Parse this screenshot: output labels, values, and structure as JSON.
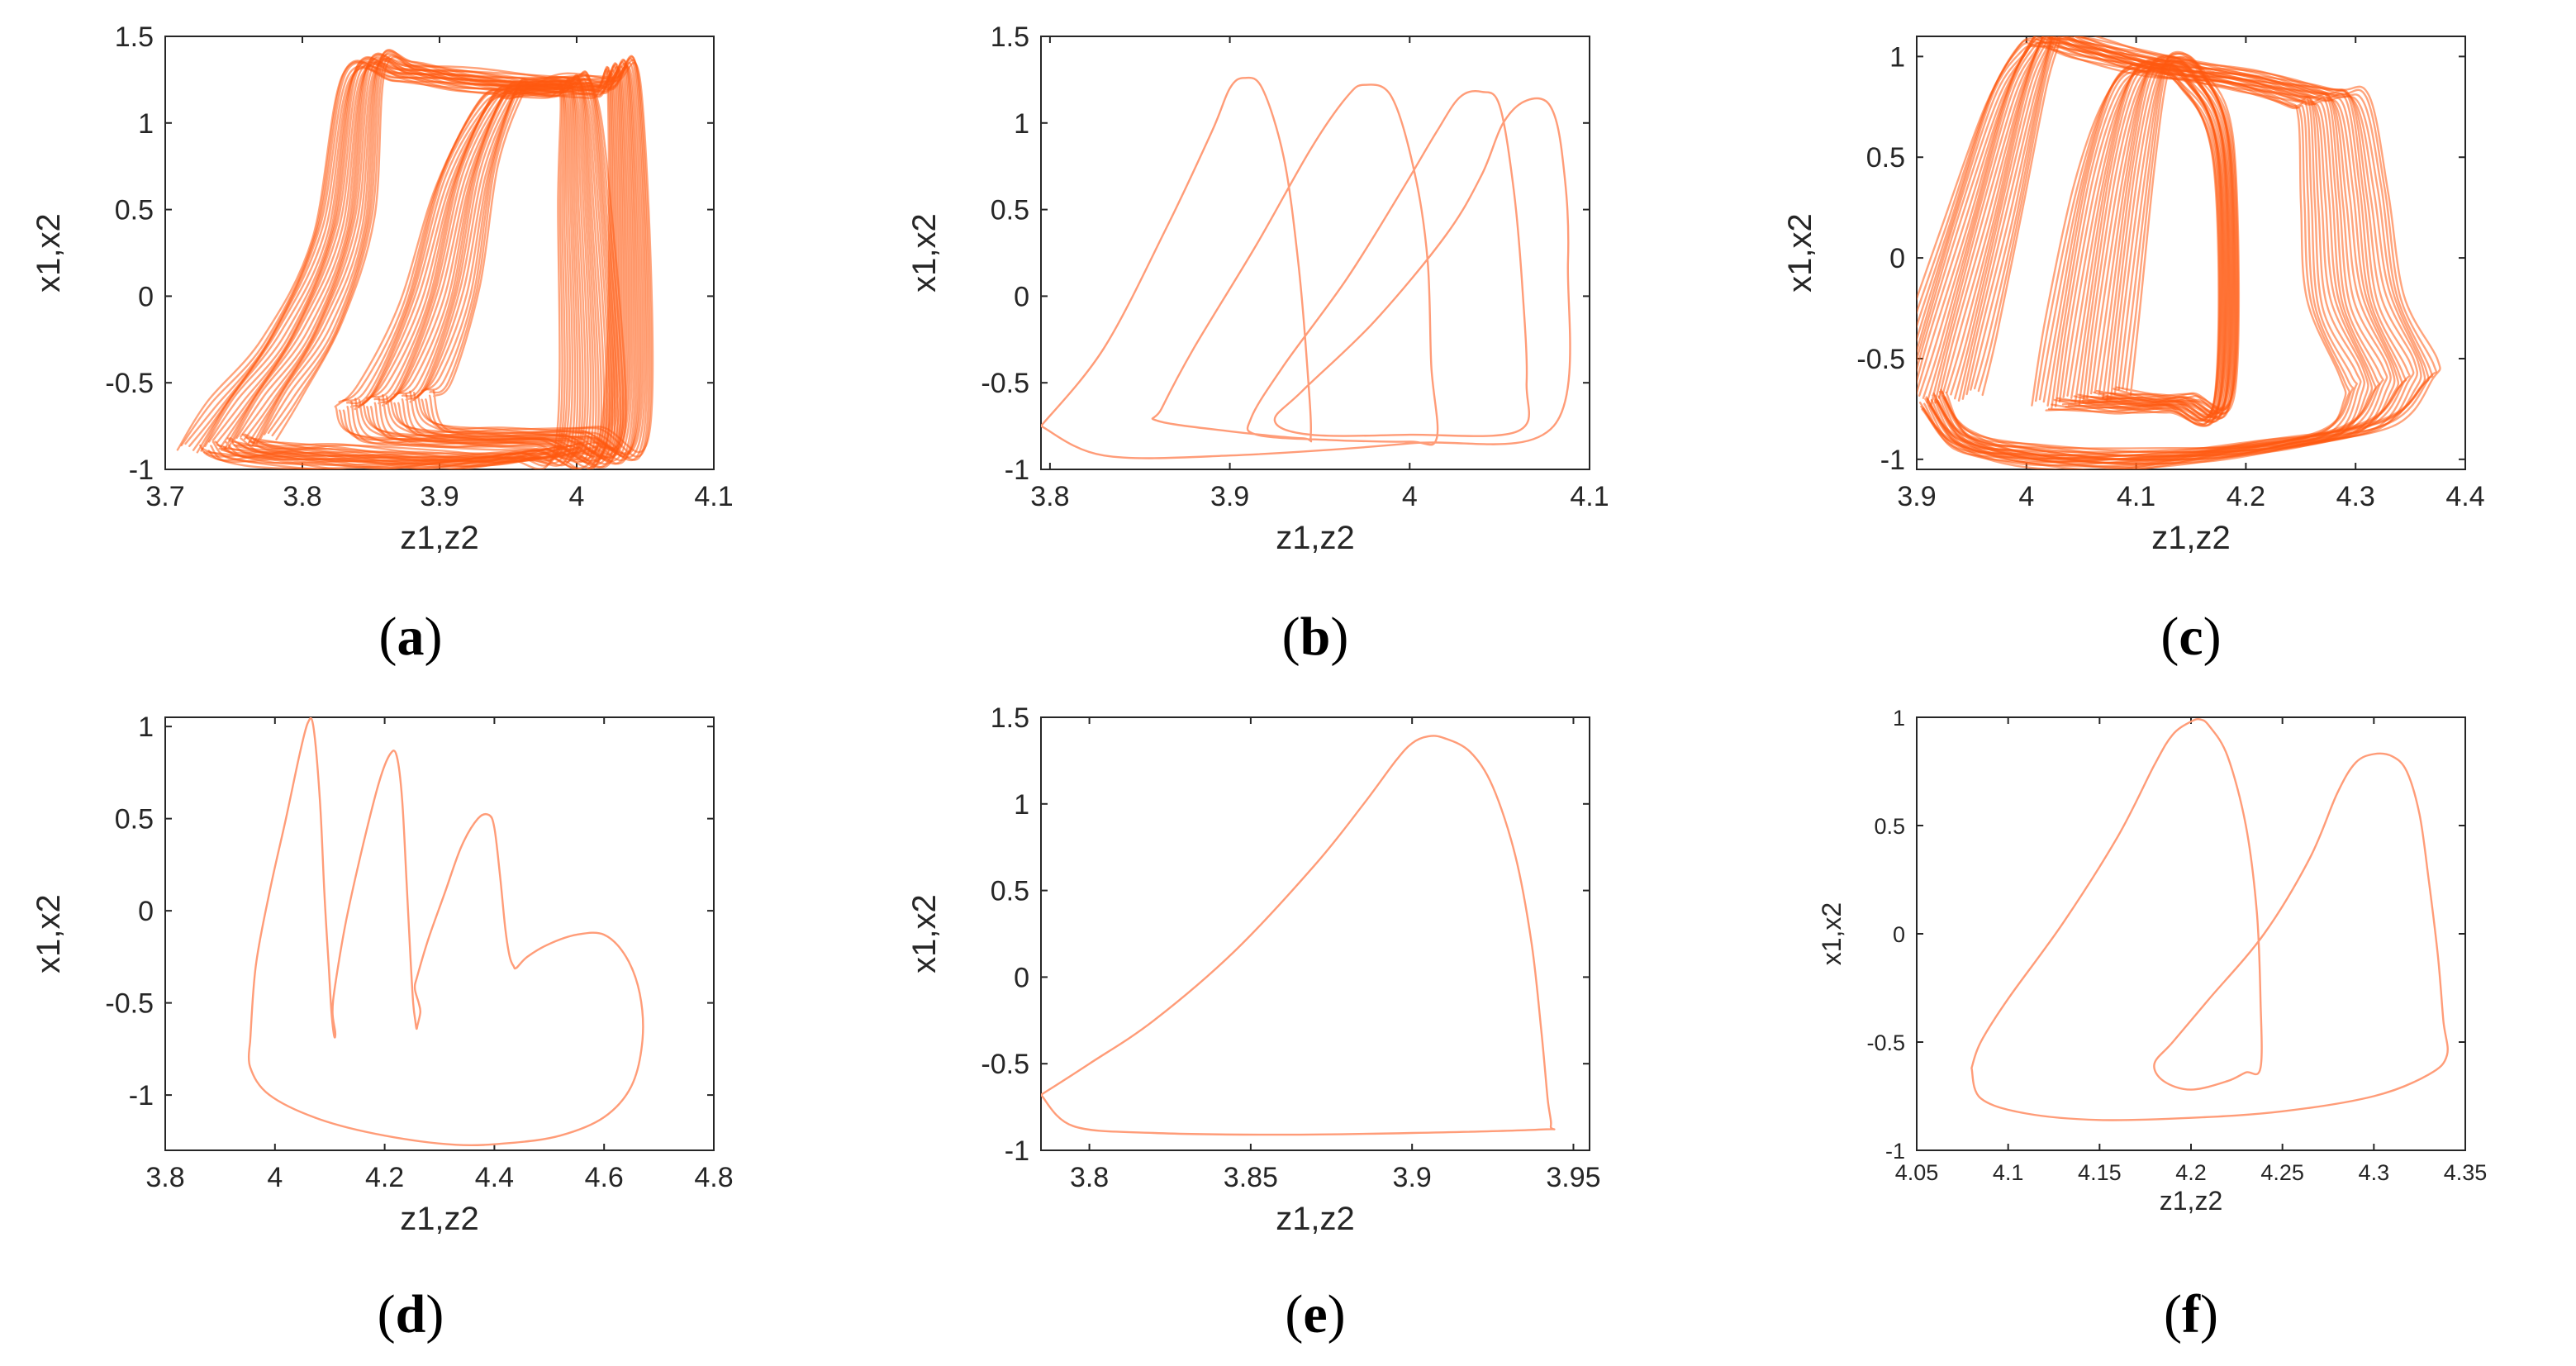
{
  "colors": {
    "trajectory": "#ff5a10",
    "trajectory_light": "#ff9c78",
    "axis": "#262626"
  },
  "chart_data": [
    {
      "panel": "a",
      "caption": {
        "open": "(",
        "letter": "a",
        "close": ")"
      },
      "type": "line",
      "kind": "phase-portrait-chaotic",
      "xlabel": "z1,z2",
      "ylabel": "x1,x2",
      "xlim": [
        3.7,
        4.1
      ],
      "ylim": [
        -1,
        1.5
      ],
      "xticks": [
        "3.7",
        "3.8",
        "3.9",
        "4",
        "4.1"
      ],
      "yticks": [
        "-1",
        "-0.5",
        "0",
        "0.5",
        "1",
        "1.5"
      ],
      "series": [
        {
          "x": [
            3.745,
            3.765,
            3.8,
            3.83,
            3.845,
            3.875,
            3.92,
            3.985,
            4.0,
            4.005,
            4.01,
            3.98,
            3.93,
            3.87,
            3.8,
            3.76,
            3.745
          ],
          "y": [
            -0.85,
            -0.6,
            -0.2,
            0.4,
            1.3,
            1.3,
            1.25,
            1.2,
            1.2,
            0.6,
            -0.8,
            -0.9,
            -0.95,
            -0.95,
            -0.92,
            -0.9,
            -0.85
          ]
        },
        {
          "x": [
            3.86,
            3.875,
            3.9,
            3.92,
            3.945,
            3.96,
            3.985,
            4.02,
            4.035,
            4.035,
            3.99,
            3.92,
            3.87,
            3.86
          ],
          "y": [
            -0.6,
            -0.5,
            0.0,
            0.7,
            1.15,
            1.2,
            1.22,
            1.2,
            1.18,
            -0.8,
            -0.82,
            -0.82,
            -0.78,
            -0.6
          ]
        }
      ]
    },
    {
      "panel": "b",
      "caption": {
        "open": "(",
        "letter": "b",
        "close": ")"
      },
      "type": "line",
      "kind": "phase-portrait-periodic",
      "xlabel": "z1,z2",
      "ylabel": "x1,x2",
      "xlim": [
        3.795,
        4.1
      ],
      "ylim": [
        -1,
        1.5
      ],
      "xticks": [
        "3.8",
        "3.9",
        "4",
        "4.1"
      ],
      "xtick_values": [
        3.8,
        3.9,
        4.0,
        4.1
      ],
      "yticks": [
        "-1",
        "-0.5",
        "0",
        "0.5",
        "1",
        "1.5"
      ],
      "series": [
        {
          "x": [
            3.795,
            3.83,
            3.865,
            3.89,
            3.9,
            3.908,
            3.918,
            3.93,
            3.938,
            3.943,
            3.945,
            3.94,
            3.9,
            3.86,
            3.862,
            3.88,
            3.915,
            3.945,
            3.965,
            3.975,
            3.99,
            4.003,
            4.01,
            4.012,
            4.015,
            4.0,
            3.955,
            3.915,
            3.912,
            3.93,
            3.965,
            3.995,
            4.015,
            4.028,
            4.04,
            4.05,
            4.058,
            4.063,
            4.065,
            4.06,
            4.0,
            3.945,
            3.925,
            3.94,
            3.98,
            4.02,
            4.04,
            4.052,
            4.065,
            4.078,
            4.085,
            4.088,
            4.08,
            4.0,
            3.9,
            3.83,
            3.795
          ],
          "y": [
            -0.75,
            -0.3,
            0.4,
            0.95,
            1.2,
            1.26,
            1.2,
            0.8,
            0.2,
            -0.4,
            -0.8,
            -0.82,
            -0.78,
            -0.72,
            -0.65,
            -0.3,
            0.3,
            0.85,
            1.15,
            1.22,
            1.15,
            0.7,
            0.2,
            -0.4,
            -0.82,
            -0.84,
            -0.83,
            -0.8,
            -0.7,
            -0.4,
            0.1,
            0.6,
            0.95,
            1.15,
            1.18,
            1.1,
            0.6,
            0.0,
            -0.5,
            -0.78,
            -0.8,
            -0.8,
            -0.72,
            -0.55,
            -0.15,
            0.35,
            0.7,
            1.0,
            1.13,
            1.1,
            0.8,
            0.2,
            -0.75,
            -0.85,
            -0.92,
            -0.92,
            -0.75
          ]
        }
      ]
    },
    {
      "panel": "c",
      "caption": {
        "open": "(",
        "letter": "c",
        "close": ")"
      },
      "type": "line",
      "kind": "phase-portrait-chaotic",
      "xlabel": "z1,z2",
      "ylabel": "x1,x2",
      "xlim": [
        3.9,
        4.4
      ],
      "ylim": [
        -1.05,
        1.1
      ],
      "xticks": [
        "3.9",
        "4",
        "4.1",
        "4.2",
        "4.3",
        "4.4"
      ],
      "yticks": [
        "-1",
        "-0.5",
        "0",
        "0.5",
        "1"
      ],
      "series": [
        {
          "x": [
            3.915,
            3.93,
            3.96,
            3.99,
            4.01,
            4.02,
            4.05,
            4.12,
            4.2,
            4.26,
            4.28,
            4.29,
            4.3,
            4.33,
            4.33,
            4.3,
            4.2,
            4.1,
            4.0,
            3.94,
            3.915
          ],
          "y": [
            -0.7,
            -0.4,
            0.2,
            0.8,
            1.05,
            1.1,
            1.05,
            0.95,
            0.88,
            0.8,
            0.75,
            0.3,
            -0.2,
            -0.55,
            -0.65,
            -0.85,
            -0.95,
            -1.0,
            -0.98,
            -0.9,
            -0.7
          ]
        },
        {
          "x": [
            4.05,
            4.06,
            4.08,
            4.1,
            4.12,
            4.15,
            4.18,
            4.18,
            4.14,
            4.1,
            4.05
          ],
          "y": [
            -0.7,
            -0.3,
            0.4,
            0.85,
            0.97,
            0.9,
            0.5,
            -0.7,
            -0.72,
            -0.72,
            -0.7
          ]
        }
      ]
    },
    {
      "panel": "d",
      "caption": {
        "open": "(",
        "letter": "d",
        "close": ")"
      },
      "type": "line",
      "kind": "phase-portrait-periodic",
      "xlabel": "z1,z2",
      "ylabel": "x1,x2",
      "xlim": [
        3.8,
        4.8
      ],
      "ylim": [
        -1.3,
        1.05
      ],
      "xticks": [
        "3.8",
        "4",
        "4.2",
        "4.4",
        "4.6",
        "4.8"
      ],
      "yticks": [
        "-1",
        "-0.5",
        "0",
        "0.5",
        "1"
      ],
      "series": [
        {
          "x": [
            3.955,
            3.965,
            3.99,
            4.02,
            4.045,
            4.06,
            4.07,
            4.082,
            4.09,
            4.098,
            4.103,
            4.108,
            4.11,
            4.105,
            4.11,
            4.13,
            4.16,
            4.19,
            4.21,
            4.222,
            4.232,
            4.24,
            4.247,
            4.252,
            4.256,
            4.258,
            4.26,
            4.265,
            4.262,
            4.255,
            4.26,
            4.28,
            4.31,
            4.34,
            4.37,
            4.39,
            4.4,
            4.41,
            4.42,
            4.428,
            4.435,
            4.44,
            4.46,
            4.5,
            4.55,
            4.6,
            4.64,
            4.665,
            4.67,
            4.65,
            4.6,
            4.52,
            4.43,
            4.33,
            4.2,
            4.08,
            3.99,
            3.955,
            3.955
          ],
          "y": [
            -0.7,
            -0.3,
            0.1,
            0.5,
            0.85,
            1.02,
            1.0,
            0.6,
            0.1,
            -0.3,
            -0.55,
            -0.68,
            -0.66,
            -0.55,
            -0.4,
            -0.05,
            0.35,
            0.7,
            0.85,
            0.84,
            0.6,
            0.15,
            -0.25,
            -0.5,
            -0.6,
            -0.64,
            -0.62,
            -0.55,
            -0.5,
            -0.42,
            -0.35,
            -0.15,
            0.1,
            0.35,
            0.5,
            0.52,
            0.45,
            0.2,
            -0.1,
            -0.25,
            -0.3,
            -0.31,
            -0.25,
            -0.18,
            -0.13,
            -0.13,
            -0.25,
            -0.45,
            -0.7,
            -0.95,
            -1.12,
            -1.22,
            -1.26,
            -1.27,
            -1.22,
            -1.13,
            -1.0,
            -0.85,
            -0.7
          ]
        }
      ]
    },
    {
      "panel": "e",
      "caption": {
        "open": "(",
        "letter": "e",
        "close": ")"
      },
      "type": "line",
      "kind": "phase-portrait-periodic",
      "xlabel": "z1,z2",
      "ylabel": "x1,x2",
      "xlim": [
        3.785,
        3.955
      ],
      "ylim": [
        -1,
        1.5
      ],
      "xticks": [
        "3.8",
        "3.85",
        "3.9",
        "3.95"
      ],
      "xtick_values": [
        3.8,
        3.85,
        3.9,
        3.95
      ],
      "yticks": [
        "-1",
        "-0.5",
        "0",
        "0.5",
        "1",
        "1.5"
      ],
      "series": [
        {
          "x": [
            3.785,
            3.8,
            3.82,
            3.845,
            3.87,
            3.885,
            3.895,
            3.9,
            3.905,
            3.91,
            3.918,
            3.925,
            3.932,
            3.937,
            3.94,
            3.942,
            3.943,
            3.94,
            3.9,
            3.86,
            3.82,
            3.795,
            3.785
          ],
          "y": [
            -0.68,
            -0.5,
            -0.25,
            0.15,
            0.65,
            1.0,
            1.25,
            1.35,
            1.39,
            1.38,
            1.3,
            1.1,
            0.7,
            0.2,
            -0.3,
            -0.7,
            -0.86,
            -0.88,
            -0.9,
            -0.91,
            -0.9,
            -0.86,
            -0.68
          ]
        }
      ]
    },
    {
      "panel": "f",
      "caption": {
        "open": "(",
        "letter": "f",
        "close": ")"
      },
      "type": "line",
      "kind": "phase-portrait-periodic",
      "xlabel": "z1,z2",
      "ylabel": "x1,x2",
      "xlim": [
        4.05,
        4.35
      ],
      "ylim": [
        -1,
        1
      ],
      "xticks": [
        "4.05",
        "4.1",
        "4.15",
        "4.2",
        "4.25",
        "4.3",
        "4.35"
      ],
      "yticks": [
        "-1",
        "-0.5",
        "0",
        "0.5",
        "1"
      ],
      "series": [
        {
          "x": [
            4.08,
            4.085,
            4.1,
            4.13,
            4.16,
            4.18,
            4.19,
            4.2,
            4.205,
            4.21,
            4.22,
            4.23,
            4.236,
            4.238,
            4.238,
            4.23,
            4.22,
            4.2,
            4.185,
            4.18,
            4.19,
            4.21,
            4.24,
            4.265,
            4.28,
            4.29,
            4.3,
            4.31,
            4.318,
            4.325,
            4.33,
            4.335,
            4.338,
            4.34,
            4.33,
            4.3,
            4.25,
            4.2,
            4.15,
            4.11,
            4.085,
            4.08
          ],
          "y": [
            -0.62,
            -0.5,
            -0.3,
            0.05,
            0.45,
            0.78,
            0.92,
            0.98,
            0.99,
            0.96,
            0.82,
            0.5,
            0.1,
            -0.3,
            -0.62,
            -0.64,
            -0.68,
            -0.72,
            -0.68,
            -0.6,
            -0.5,
            -0.3,
            0.0,
            0.35,
            0.65,
            0.79,
            0.83,
            0.82,
            0.75,
            0.55,
            0.25,
            -0.1,
            -0.4,
            -0.56,
            -0.65,
            -0.75,
            -0.82,
            -0.85,
            -0.86,
            -0.83,
            -0.76,
            -0.62
          ]
        }
      ]
    }
  ]
}
